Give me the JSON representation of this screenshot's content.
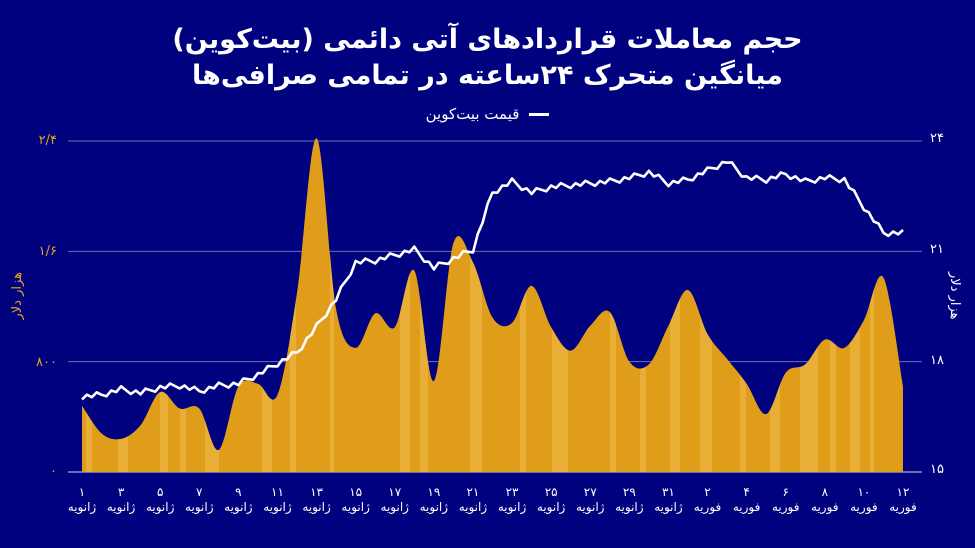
{
  "title": {
    "line1": "حجم معاملات قراردادهای آتی دائمی (بیت‌کوین)",
    "line2": "میانگین متحرک ۲۴ساعته در تمامی صرافی‌ها"
  },
  "legend": {
    "label": "قیمت بیت‌کوین",
    "color": "#ffffff"
  },
  "colors": {
    "background": "#00017e",
    "area": "#e09d1a",
    "area_light": "#ebb440",
    "line": "#ffffff",
    "grid": "#6b6fb5",
    "left_axis": "#e8a21c"
  },
  "axes": {
    "left": {
      "unit": "هزار دلار",
      "ticks": [
        "۰",
        "۸۰۰",
        "۱/۶",
        "۲/۴"
      ]
    },
    "right": {
      "unit": "هزار دلار",
      "ticks": [
        "۱۵",
        "۱۸",
        "۲۱",
        "۲۴"
      ]
    }
  },
  "x_labels": [
    {
      "d": "۱",
      "m": "ژانویه"
    },
    {
      "d": "۳",
      "m": "ژانویه"
    },
    {
      "d": "۵",
      "m": "ژانویه"
    },
    {
      "d": "۷",
      "m": "ژانویه"
    },
    {
      "d": "۹",
      "m": "ژانویه"
    },
    {
      "d": "۱۱",
      "m": "ژانویه"
    },
    {
      "d": "۱۳",
      "m": "ژانویه"
    },
    {
      "d": "۱۵",
      "m": "ژانویه"
    },
    {
      "d": "۱۷",
      "m": "ژانویه"
    },
    {
      "d": "۱۹",
      "m": "ژانویه"
    },
    {
      "d": "۲۱",
      "m": "ژانویه"
    },
    {
      "d": "۲۳",
      "m": "ژانویه"
    },
    {
      "d": "۲۵",
      "m": "ژانویه"
    },
    {
      "d": "۲۷",
      "m": "ژانویه"
    },
    {
      "d": "۲۹",
      "m": "ژانویه"
    },
    {
      "d": "۳۱",
      "m": "ژانویه"
    },
    {
      "d": "۲",
      "m": "فوریه"
    },
    {
      "d": "۴",
      "m": "فوریه"
    },
    {
      "d": "۶",
      "m": "فوریه"
    },
    {
      "d": "۸",
      "m": "فوریه"
    },
    {
      "d": "۱۰",
      "m": "فوریه"
    },
    {
      "d": "۱۲",
      "m": "فوریه"
    }
  ],
  "chart_data": {
    "type": "area+line",
    "title": "حجم معاملات قراردادهای آتی دائمی (بیت‌کوین) — میانگین متحرک ۲۴ساعته در تمامی صرافی‌ها",
    "x": [
      "1 Jan",
      "2 Jan",
      "3 Jan",
      "4 Jan",
      "5 Jan",
      "6 Jan",
      "7 Jan",
      "8 Jan",
      "9 Jan",
      "10 Jan",
      "11 Jan",
      "12 Jan",
      "13 Jan",
      "14 Jan",
      "15 Jan",
      "16 Jan",
      "17 Jan",
      "18 Jan",
      "19 Jan",
      "20 Jan",
      "21 Jan",
      "22 Jan",
      "23 Jan",
      "24 Jan",
      "25 Jan",
      "26 Jan",
      "27 Jan",
      "28 Jan",
      "29 Jan",
      "30 Jan",
      "31 Jan",
      "1 Feb",
      "2 Feb",
      "3 Feb",
      "4 Feb",
      "5 Feb",
      "6 Feb",
      "7 Feb",
      "8 Feb",
      "9 Feb",
      "10 Feb",
      "11 Feb",
      "12 Feb"
    ],
    "series": [
      {
        "name": "حجم معاملات (هزار دلار)",
        "type": "area",
        "axis": "left",
        "values": [
          480,
          280,
          240,
          340,
          580,
          460,
          460,
          160,
          620,
          640,
          560,
          1300,
          2420,
          1180,
          900,
          1150,
          1050,
          1460,
          660,
          1660,
          1520,
          1120,
          1080,
          1350,
          1050,
          880,
          1060,
          1160,
          800,
          780,
          1060,
          1320,
          1000,
          820,
          640,
          420,
          720,
          780,
          960,
          900,
          1100,
          1410,
          620
        ]
      },
      {
        "name": "قیمت بیت‌کوین (هزار دلار)",
        "type": "line",
        "axis": "right",
        "values": [
          17.05,
          17.1,
          17.25,
          17.15,
          17.3,
          17.35,
          17.2,
          17.35,
          17.4,
          17.65,
          17.95,
          18.25,
          18.95,
          19.7,
          20.7,
          20.75,
          20.9,
          21.05,
          20.55,
          20.8,
          21.05,
          22.6,
          22.9,
          22.6,
          22.75,
          22.8,
          22.85,
          22.9,
          23.0,
          23.15,
          22.85,
          22.95,
          23.2,
          23.45,
          23.0,
          22.95,
          23.1,
          22.9,
          23.0,
          22.95,
          22.2,
          21.5,
          21.5
        ]
      }
    ],
    "left_axis": {
      "label": "هزار دلار",
      "ticks": [
        0,
        800,
        1600,
        2400
      ],
      "range": [
        0,
        2400
      ]
    },
    "right_axis": {
      "label": "هزار دلار",
      "ticks": [
        15,
        18,
        21,
        24
      ],
      "range": [
        15,
        24
      ]
    },
    "legend": [
      "قیمت بیت‌کوین"
    ],
    "grid": true,
    "legend_position": "top-center"
  }
}
